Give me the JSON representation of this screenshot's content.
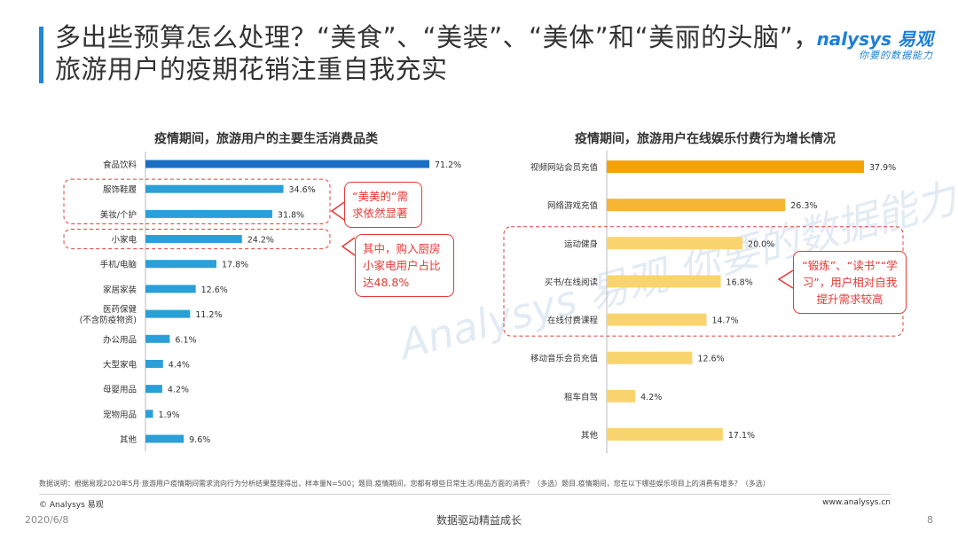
{
  "header": {
    "headline": "多出些预算怎么处理？“美食”、“美装”、“美体”和“美丽的头脑”，旅游用户的疫期花销注重自我充实",
    "logo_text": "nalysys 易观",
    "logo_tagline": "你要的数据能力"
  },
  "watermark": "Analysys 易观 你要的数据能力",
  "chart_data": [
    {
      "type": "bar",
      "orientation": "horizontal",
      "title": "疫情期间，旅游用户的主要生活消费品类",
      "categories": [
        "食品饮料",
        "服饰鞋履",
        "美妆/个护",
        "小家电",
        "手机/电脑",
        "家居家装",
        "医药保健\n(不含防疫物资)",
        "办公用品",
        "大型家电",
        "母婴用品",
        "宠物用品",
        "其他"
      ],
      "values": [
        71.2,
        34.6,
        31.8,
        24.2,
        17.8,
        12.6,
        11.2,
        6.1,
        4.4,
        4.2,
        1.9,
        9.6
      ],
      "value_labels": [
        "71.2%",
        "34.6%",
        "31.8%",
        "24.2%",
        "17.8%",
        "12.6%",
        "11.2%",
        "6.1%",
        "4.4%",
        "4.2%",
        "1.9%",
        "9.6%"
      ],
      "unit": "%",
      "colors": [
        "#1a6fc4",
        "#2a9fd8",
        "#2a9fd8",
        "#2a9fd8",
        "#2a9fd8",
        "#2a9fd8",
        "#2a9fd8",
        "#2a9fd8",
        "#2a9fd8",
        "#2a9fd8",
        "#2a9fd8",
        "#2a9fd8"
      ],
      "highlight_groups": [
        [
          1,
          2
        ],
        [
          3
        ]
      ]
    },
    {
      "type": "bar",
      "orientation": "horizontal",
      "title": "疫情期间，旅游用户在线娱乐付费行为增长情况",
      "categories": [
        "视频网站会员充值",
        "网络游戏充值",
        "运动健身",
        "买书/在线阅读",
        "在线付费课程",
        "移动音乐会员充值",
        "租车自驾",
        "其他"
      ],
      "values": [
        37.9,
        26.3,
        20.0,
        16.8,
        14.7,
        12.6,
        4.2,
        17.1
      ],
      "value_labels": [
        "37.9%",
        "26.3%",
        "20.0%",
        "16.8%",
        "14.7%",
        "12.6%",
        "4.2%",
        "17.1%"
      ],
      "unit": "%",
      "colors": [
        "#f5a20a",
        "#f6b533",
        "#f9d46e",
        "#f9d46e",
        "#f9d46e",
        "#f9d46e",
        "#f9d46e",
        "#f9d46e"
      ],
      "highlight_groups": [
        [
          2,
          3,
          4
        ]
      ]
    }
  ],
  "notes": {
    "left_note_1": "“美美的”需求依然显著",
    "left_note_2": "其中，购入厨房小家电用户占比达48.8%",
    "right_note": "“锻炼”、“读书”“学习”，用户相对自我提升需求较高"
  },
  "footer": {
    "data_note": "数据说明：根据易观2020年5月·旅游用户疫情期间需求流向行为分析结果整理得出，样本量N=500；题目.疫情期间，您都有哪些日常生活/用品方面的消费？（多选）题目.疫情期间，您在以下哪些娱乐项目上的消费有增多？（多选）",
    "copyright": "© Analysys 易观",
    "website": "www.analysys.cn",
    "date": "2020/6/8",
    "slogan": "数据驱动精益成长",
    "page_number": "8"
  },
  "colors": {
    "accent_blue": "#1f86d8",
    "note_red": "#e53935",
    "dashed_highlight": "#d9463d"
  }
}
